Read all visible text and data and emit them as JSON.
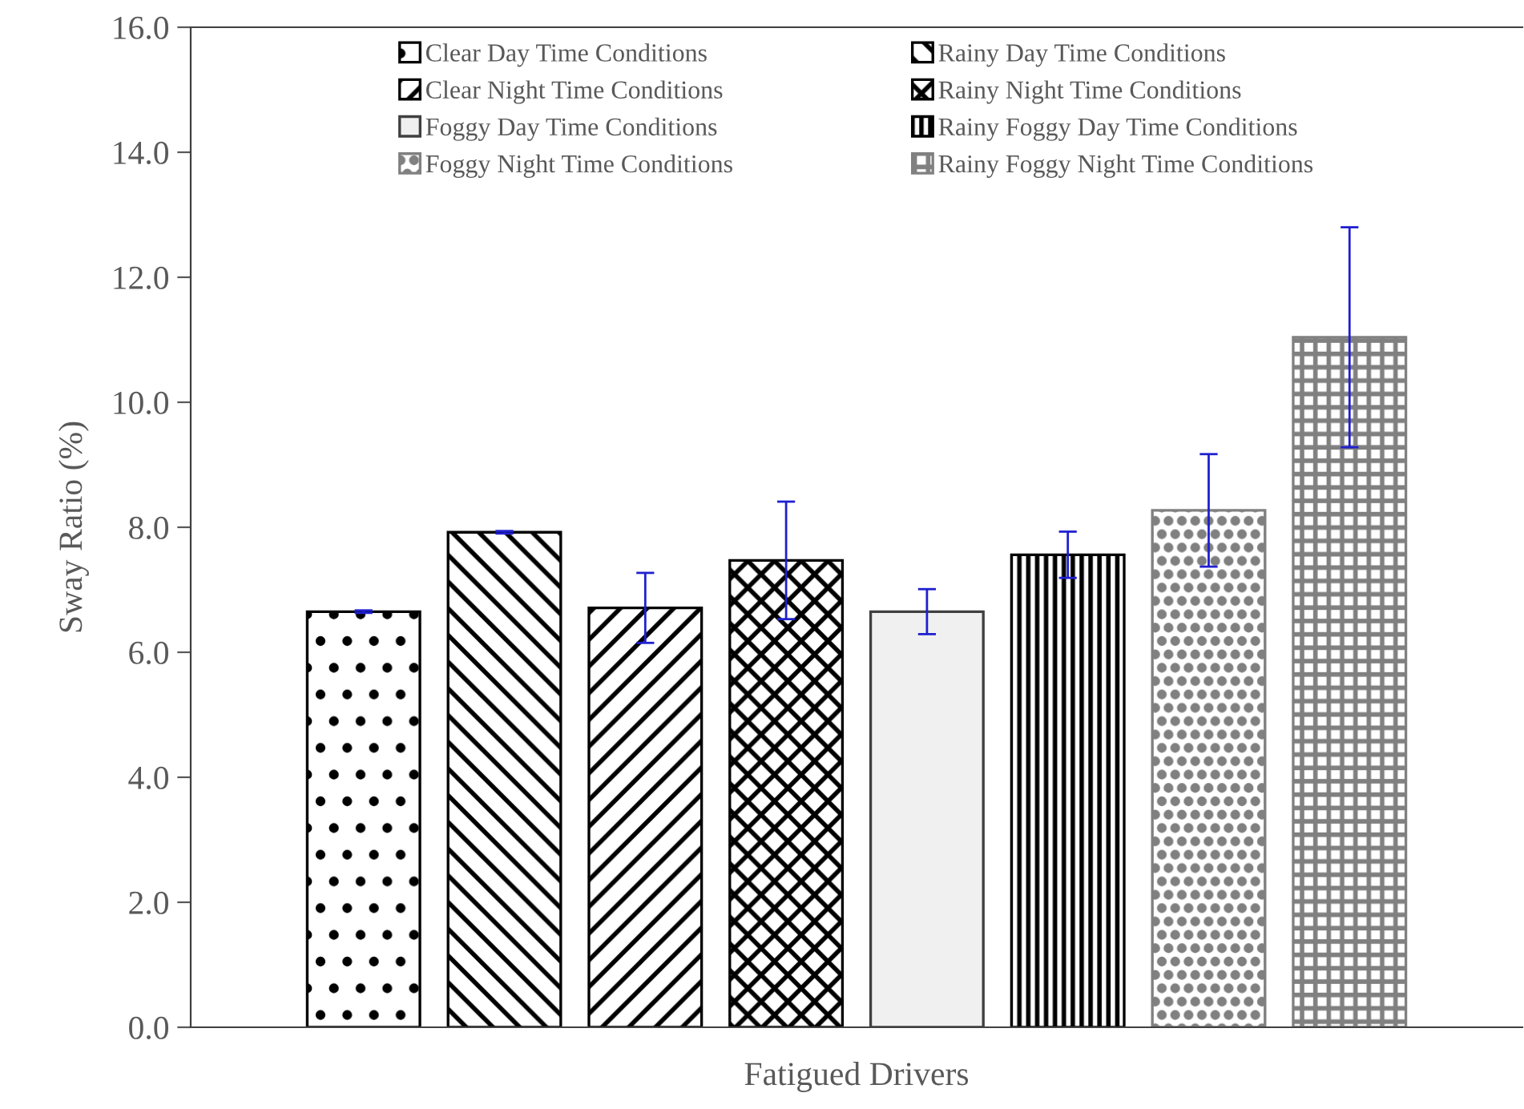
{
  "chart_data": {
    "type": "bar",
    "categories": [
      null
    ],
    "xlabel": "Fatigued Drivers",
    "ylabel": "Sway Ratio (%)",
    "ylim": [
      0,
      16
    ],
    "yticks": [
      {
        "value": 0,
        "label": "0.0"
      },
      {
        "value": 2,
        "label": "2.0"
      },
      {
        "value": 4,
        "label": "4.0"
      },
      {
        "value": 6,
        "label": "6.0"
      },
      {
        "value": 8,
        "label": "8.0"
      },
      {
        "value": 10,
        "label": "10.0"
      },
      {
        "value": 12,
        "label": "12.0"
      },
      {
        "value": 14,
        "label": "14.0"
      },
      {
        "value": 16,
        "label": "16.0"
      }
    ],
    "legend": "top",
    "grid": false,
    "series": [
      {
        "name": "Clear Day Time Conditions",
        "color": "#000000",
        "values": [
          6.65
        ],
        "errors": [
          0.02
        ]
      },
      {
        "name": "Rainy Day Time Conditions",
        "color": "#000000",
        "values": [
          7.92
        ],
        "errors": [
          0.02
        ]
      },
      {
        "name": "Clear Night Time Conditions",
        "color": "#000000",
        "values": [
          6.71
        ],
        "errors": [
          0.56
        ]
      },
      {
        "name": "Rainy Night Time Conditions",
        "color": "#000000",
        "values": [
          7.47
        ],
        "errors": [
          0.94
        ]
      },
      {
        "name": "Foggy Day Time Conditions",
        "color": "#f0f0f0",
        "values": [
          6.65
        ],
        "errors": [
          0.36
        ]
      },
      {
        "name": "Rainy Foggy Day Time Conditions",
        "color": "#000000",
        "values": [
          7.56
        ],
        "errors": [
          0.37
        ]
      },
      {
        "name": "Foggy Night Time Conditions",
        "color": "#808080",
        "values": [
          8.27
        ],
        "errors": [
          0.9
        ]
      },
      {
        "name": "Rainy Foggy Night Time Conditions",
        "color": "#808080",
        "values": [
          11.04
        ],
        "errors": [
          1.76
        ]
      }
    ]
  }
}
